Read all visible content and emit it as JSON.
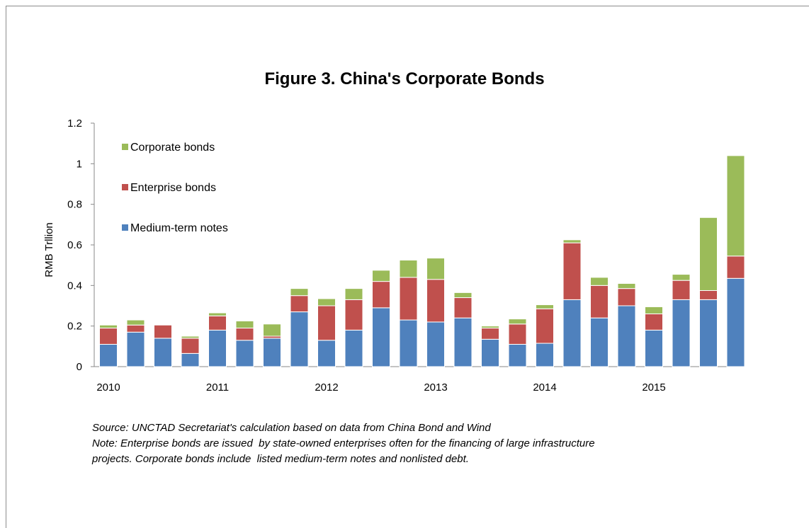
{
  "chart_data": {
    "type": "bar",
    "stacked": true,
    "title": "Figure 3. China's Corporate Bonds",
    "ylabel": "RMB Trllion",
    "xlabel": "",
    "ylim": [
      0,
      1.2
    ],
    "yticks": [
      "0",
      "0.2",
      "0.4",
      "0.6",
      "0.8",
      "1",
      "1.2"
    ],
    "year_labels": [
      {
        "label": "2010",
        "bar_index": 0
      },
      {
        "label": "2011",
        "bar_index": 4
      },
      {
        "label": "2012",
        "bar_index": 8
      },
      {
        "label": "2013",
        "bar_index": 12
      },
      {
        "label": "2014",
        "bar_index": 16
      },
      {
        "label": "2015",
        "bar_index": 20
      }
    ],
    "legend_position": "top-left",
    "series": [
      {
        "name": "Medium-term notes",
        "color": "#4f81bd",
        "values": [
          0.11,
          0.17,
          0.14,
          0.065,
          0.18,
          0.13,
          0.14,
          0.27,
          0.13,
          0.18,
          0.29,
          0.23,
          0.22,
          0.24,
          0.135,
          0.11,
          0.115,
          0.33,
          0.24,
          0.3,
          0.18,
          0.33,
          0.33,
          0.435
        ]
      },
      {
        "name": "Enterprise bonds",
        "color": "#c0504d",
        "values": [
          0.08,
          0.035,
          0.065,
          0.075,
          0.07,
          0.06,
          0.01,
          0.08,
          0.17,
          0.15,
          0.13,
          0.21,
          0.21,
          0.1,
          0.055,
          0.1,
          0.17,
          0.28,
          0.16,
          0.085,
          0.08,
          0.095,
          0.045,
          0.11
        ]
      },
      {
        "name": "Corporate bonds",
        "color": "#9bbb59",
        "values": [
          0.015,
          0.025,
          0.0,
          0.01,
          0.015,
          0.035,
          0.06,
          0.035,
          0.035,
          0.055,
          0.055,
          0.085,
          0.105,
          0.025,
          0.01,
          0.025,
          0.02,
          0.015,
          0.04,
          0.025,
          0.035,
          0.03,
          0.36,
          0.495
        ]
      }
    ],
    "legend_order": [
      "Corporate bonds",
      "Enterprise bonds",
      "Medium-term notes"
    ]
  },
  "source_text": "Source: UNCTAD Secretariat's calculation based on data from China Bond and Wind",
  "note_line1": "Note: Enterprise bonds are issued  by state-owned enterprises often for the financing of large infrastructure",
  "note_line2": "projects. Corporate bonds include  listed medium-term notes and nonlisted debt."
}
